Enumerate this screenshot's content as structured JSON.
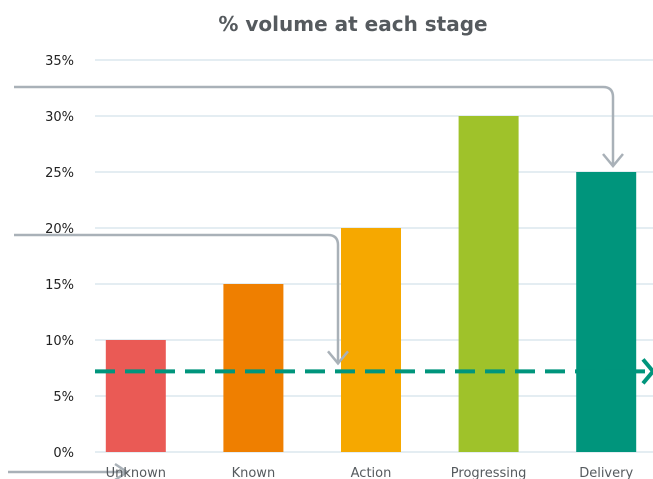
{
  "chart_data": {
    "type": "bar",
    "title": "% volume at each stage",
    "categories": [
      "Unknown",
      "Known",
      "Action",
      "Progressing",
      "Delivery"
    ],
    "values": [
      10,
      15,
      20,
      30,
      25
    ],
    "bar_colors": [
      "#ea5a55",
      "#ef7f00",
      "#f6a800",
      "#9fc22a",
      "#00957c"
    ],
    "ylim": [
      0,
      35
    ],
    "y_ticks": [
      "0%",
      "5%",
      "10%",
      "15%",
      "20%",
      "25%",
      "30%",
      "35%"
    ],
    "grid": true,
    "reference_line": {
      "value": 7.2,
      "color": "#00957c",
      "style": "dashed"
    },
    "annotation_arrows": [
      "arrow-to-delivery",
      "arrow-to-reference-line",
      "arrow-to-first-category"
    ],
    "colors": {
      "grid": "#c8dbe5",
      "arrow": "#a9b1b8",
      "text": "#555a5e"
    }
  }
}
